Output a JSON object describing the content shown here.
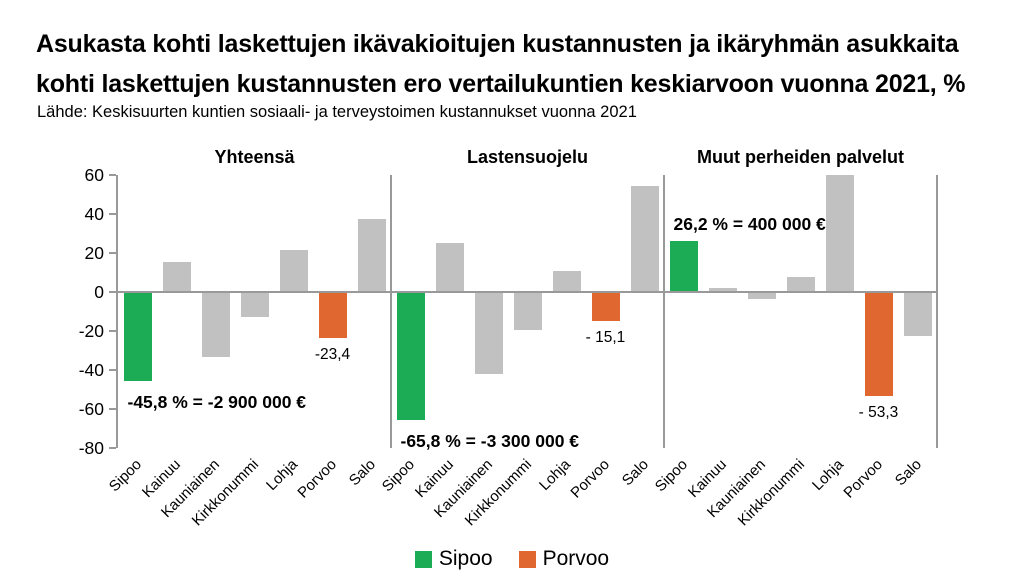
{
  "header": {
    "title_line1": "Asukasta kohti laskettujen ikävakioitujen kustannusten ja ikäryhmän asukkaita",
    "title_line2": "kohti laskettujen kustannusten ero vertailukuntien keskiarvoon vuonna 2021, %",
    "source": "Lähde: Keskisuurten kuntien sosiaali- ja terveystoimen kustannukset vuonna 2021"
  },
  "colors": {
    "sipoo_green": "#1bac55",
    "porvoo_orange": "#e0672f",
    "other_gray": "#c1c1c1",
    "axis_gray": "#999999",
    "text_black": "#000000"
  },
  "legend": {
    "items": [
      {
        "label": "Sipoo",
        "color": "#1bac55"
      },
      {
        "label": "Porvoo",
        "color": "#e0672f"
      }
    ]
  },
  "chart_data": {
    "type": "bar",
    "categories": [
      "Sipoo",
      "Kainuu",
      "Kauniainen",
      "Kirkkonummi",
      "Lohja",
      "Porvoo",
      "Salo"
    ],
    "y_axis": {
      "min": -80,
      "max": 60,
      "ticks": [
        60,
        40,
        20,
        0,
        -20,
        -40,
        -60,
        -80
      ]
    },
    "highlight_colors": {
      "Sipoo": "#1bac55",
      "Porvoo": "#e0672f"
    },
    "default_bar_color": "#c1c1c1",
    "grid": false,
    "legend_position": "bottom-center",
    "panels": [
      {
        "title": "Yhteensä",
        "values": [
          -45.8,
          15.5,
          -33.5,
          -13,
          21.5,
          -23.4,
          37.5
        ],
        "annotations": [
          {
            "category": "Sipoo",
            "text": "-45,8 % = -2 900 000 €",
            "bold": true,
            "placement": "below-left"
          },
          {
            "category": "Porvoo",
            "text": "-23,4",
            "bold": false,
            "placement": "below-center"
          }
        ]
      },
      {
        "title": "Lastensuojelu",
        "values": [
          -65.8,
          25,
          -42,
          -19.5,
          11,
          -15.1,
          54.5
        ],
        "annotations": [
          {
            "category": "Sipoo",
            "text": "-65,8 % = -3 300 000 €",
            "bold": true,
            "placement": "below-left"
          },
          {
            "category": "Porvoo",
            "text": "- 15,1",
            "bold": false,
            "placement": "below-center"
          }
        ]
      },
      {
        "title": "Muut perheiden palvelut",
        "values": [
          26.2,
          2,
          -3.5,
          7.5,
          60,
          -53.3,
          -22.5
        ],
        "annotations": [
          {
            "category": "Sipoo",
            "text": "26,2 % = 400 000 €",
            "bold": true,
            "placement": "above-left"
          },
          {
            "category": "Porvoo",
            "text": "- 53,3",
            "bold": false,
            "placement": "below-center"
          }
        ]
      }
    ]
  }
}
